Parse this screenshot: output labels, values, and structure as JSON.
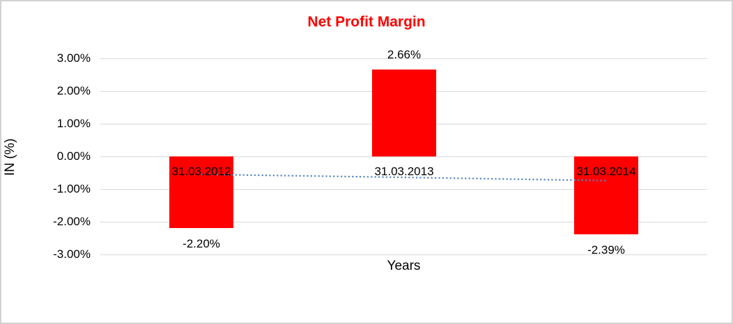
{
  "chart": {
    "title_color": "#FF0000",
    "bar_color": "#FF0000",
    "gridline_color": "#D9D9D9",
    "trendline_color": "#5585C5",
    "text_color": "#000000"
  },
  "chart_data": {
    "type": "bar",
    "title": "Net Profit Margin",
    "xlabel": "Years",
    "ylabel": "IN (%)",
    "categories": [
      "31.03.2012",
      "31.03.2013",
      "31.03.2014"
    ],
    "values": [
      -2.2,
      2.66,
      -2.39
    ],
    "data_labels": [
      "-2.20%",
      "2.66%",
      "-2.39%"
    ],
    "ylim": [
      -3,
      3
    ],
    "yticks": [
      3,
      2,
      1,
      0,
      -1,
      -2,
      -3
    ],
    "ytick_labels": [
      "3.00%",
      "2.00%",
      "1.00%",
      "0.00%",
      "-1.00%",
      "-2.00%",
      "-3.00%"
    ],
    "grid": true,
    "legend": false,
    "trendline": {
      "type": "linear",
      "style": "dotted",
      "values": [
        -0.55,
        -0.64,
        -0.74
      ]
    }
  }
}
